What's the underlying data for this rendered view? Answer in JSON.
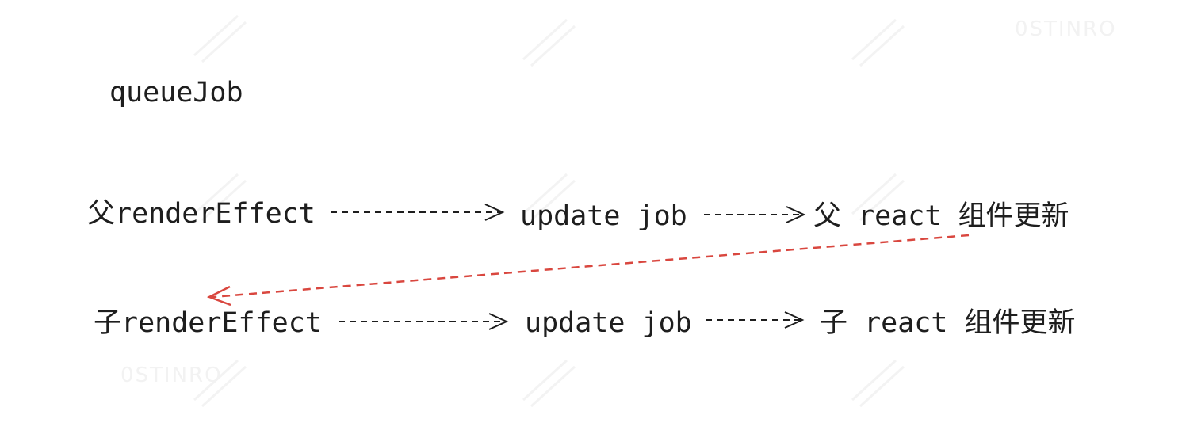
{
  "title": "queueJob",
  "rows": [
    {
      "source": "父renderEffect",
      "middle": "update job",
      "target": "父 react 组件更新"
    },
    {
      "source": "子renderEffect",
      "middle": "update job",
      "target": "子 react 组件更新"
    }
  ],
  "colors": {
    "text": "#1e1e1e",
    "arrow": "#1e1e1e",
    "cross_arrow": "#d9473f"
  },
  "watermark": "0STINRO"
}
